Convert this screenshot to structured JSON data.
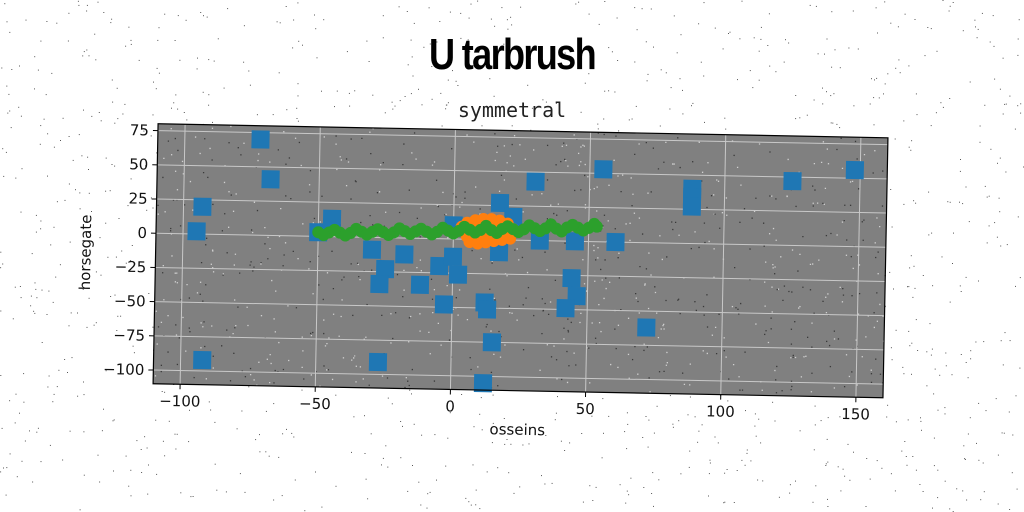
{
  "header": {
    "title": "U tarbrush",
    "subtitle": "symmetral"
  },
  "chart_data": {
    "type": "scatter",
    "title": "symmetral",
    "xlabel": "osseins",
    "ylabel": "horsegate",
    "xlim": [
      -110,
      160
    ],
    "ylim": [
      -110,
      80
    ],
    "xticks": [
      -100,
      -50,
      0,
      50,
      100,
      150
    ],
    "yticks": [
      75,
      50,
      25,
      0,
      -25,
      -50,
      -75,
      -100
    ],
    "grid": true,
    "legend": "none",
    "colors": {
      "background": "#808080",
      "grid": "#c8c8c8",
      "series1": "#1f77b4",
      "series2": "#ff7f0e",
      "series3": "#2ca02c"
    },
    "series": [
      {
        "marker": "square",
        "color": "#1f77b4",
        "points": [
          [
            -72,
            70
          ],
          [
            -68,
            41
          ],
          [
            -93,
            20
          ],
          [
            -95,
            2
          ],
          [
            -92,
            -92
          ],
          [
            -50,
            3
          ],
          [
            -45,
            13
          ],
          [
            -30,
            -9
          ],
          [
            -25,
            -23
          ],
          [
            -27,
            -34
          ],
          [
            -27,
            -91
          ],
          [
            -18,
            -12
          ],
          [
            -12,
            -34
          ],
          [
            -5,
            -20
          ],
          [
            0,
            -13
          ],
          [
            2,
            -26
          ],
          [
            -3,
            -48
          ],
          [
            0,
            10
          ],
          [
            12,
            -46
          ],
          [
            13,
            -51
          ],
          [
            15,
            -75
          ],
          [
            12,
            -105
          ],
          [
            17,
            27
          ],
          [
            22,
            17
          ],
          [
            17,
            -9
          ],
          [
            30,
            43
          ],
          [
            32,
            0
          ],
          [
            45,
            0
          ],
          [
            44,
            -27
          ],
          [
            46,
            -40
          ],
          [
            42,
            -49
          ],
          [
            55,
            53
          ],
          [
            60,
            0
          ],
          [
            72,
            -62
          ],
          [
            88,
            40
          ],
          [
            88,
            34
          ],
          [
            88,
            27
          ],
          [
            125,
            47
          ],
          [
            148,
            56
          ]
        ]
      },
      {
        "marker": "circle",
        "color": "#ff7f0e",
        "points": [
          [
            5,
            12
          ],
          [
            8,
            14
          ],
          [
            11,
            15
          ],
          [
            14,
            15
          ],
          [
            17,
            14
          ],
          [
            20,
            12
          ],
          [
            4,
            6
          ],
          [
            7,
            8
          ],
          [
            10,
            9
          ],
          [
            13,
            9
          ],
          [
            16,
            8
          ],
          [
            19,
            7
          ],
          [
            5,
            2
          ],
          [
            8,
            1
          ],
          [
            11,
            2
          ],
          [
            14,
            3
          ],
          [
            17,
            4
          ],
          [
            20,
            3
          ],
          [
            6,
            -2
          ],
          [
            9,
            -3
          ],
          [
            12,
            -2
          ],
          [
            15,
            -1
          ],
          [
            18,
            0
          ],
          [
            21,
            1
          ],
          [
            3,
            9
          ],
          [
            22,
            8
          ]
        ]
      },
      {
        "marker": "circle",
        "color": "#2ca02c",
        "points": [
          [
            -50,
            3
          ],
          [
            -46,
            3
          ],
          [
            -42,
            3
          ],
          [
            -38,
            3
          ],
          [
            -34,
            4
          ],
          [
            -30,
            4
          ],
          [
            -26,
            4
          ],
          [
            -22,
            4
          ],
          [
            -18,
            5
          ],
          [
            -14,
            5
          ],
          [
            -10,
            5
          ],
          [
            -6,
            5
          ],
          [
            -2,
            6
          ],
          [
            2,
            6
          ],
          [
            6,
            7
          ],
          [
            10,
            7
          ],
          [
            14,
            7
          ],
          [
            18,
            8
          ],
          [
            22,
            8
          ],
          [
            26,
            8
          ],
          [
            30,
            9
          ],
          [
            34,
            9
          ],
          [
            38,
            9
          ],
          [
            42,
            10
          ],
          [
            46,
            10
          ],
          [
            50,
            10
          ],
          [
            53,
            11
          ],
          [
            -48,
            1
          ],
          [
            -40,
            1
          ],
          [
            -32,
            2
          ],
          [
            -24,
            2
          ],
          [
            -16,
            3
          ],
          [
            -8,
            3
          ],
          [
            0,
            4
          ],
          [
            8,
            5
          ],
          [
            16,
            5
          ],
          [
            24,
            6
          ],
          [
            32,
            7
          ],
          [
            40,
            7
          ],
          [
            48,
            8
          ],
          [
            -44,
            5
          ],
          [
            -36,
            6
          ],
          [
            -28,
            6
          ],
          [
            -20,
            7
          ],
          [
            -12,
            7
          ],
          [
            -4,
            8
          ],
          [
            4,
            9
          ],
          [
            12,
            10
          ],
          [
            20,
            10
          ],
          [
            28,
            11
          ],
          [
            36,
            12
          ],
          [
            44,
            12
          ],
          [
            52,
            13
          ]
        ]
      }
    ]
  }
}
